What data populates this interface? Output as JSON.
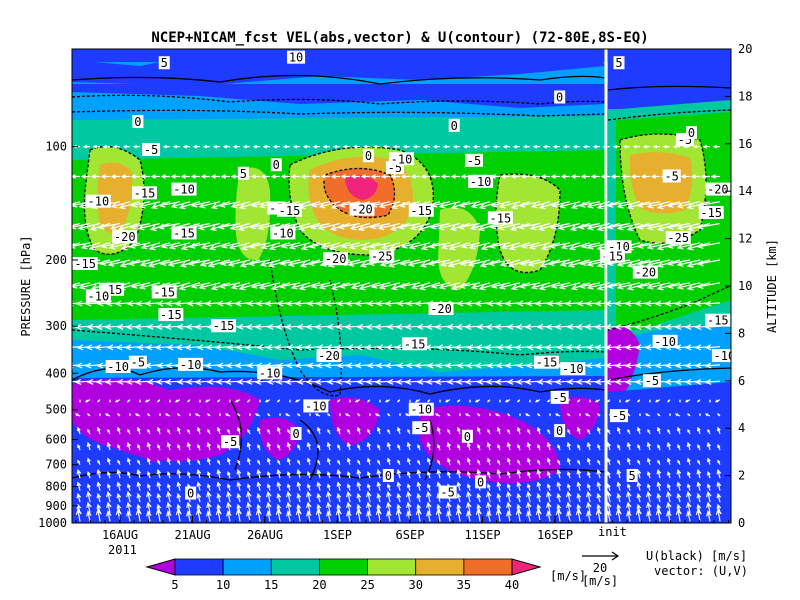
{
  "chart_data": {
    "type": "heatmap",
    "title": "NCEP+NICAM_fcst VEL(abs,vector) & U(contour)  (72-80E,8S-EQ)",
    "ylabel_left": "PRESSURE [hPa]",
    "ylabel_right": "ALTITUDE [km]",
    "x_ticks": [
      "16AUG",
      "21AUG",
      "26AUG",
      "1SEP",
      "6SEP",
      "11SEP",
      "16SEP"
    ],
    "x_year": "2011",
    "init_marker": "init",
    "y_pressure_ticks": [
      "100",
      "200",
      "300",
      "400",
      "500",
      "600",
      "700",
      "800",
      "900",
      "1000"
    ],
    "y_pressure_ticks_values": [
      100,
      200,
      300,
      400,
      500,
      600,
      700,
      800,
      900,
      1000
    ],
    "y_altitude_ticks": [
      "20",
      "18",
      "16",
      "14",
      "12",
      "10",
      "8",
      "6",
      "4",
      "2",
      "0"
    ],
    "y_altitude_ticks_values": [
      20,
      18,
      16,
      14,
      12,
      10,
      8,
      6,
      4,
      2,
      0
    ],
    "colorbar": {
      "levels": [
        "5",
        "10",
        "15",
        "20",
        "25",
        "30",
        "35",
        "40"
      ],
      "colors": [
        "#b000e0",
        "#1e3cff",
        "#00a0ff",
        "#00c8a0",
        "#00d000",
        "#a0e632",
        "#e6af2d",
        "#f06e2a",
        "#f0247a"
      ],
      "unit": "[m/s]"
    },
    "vector_ref": {
      "value": "20",
      "unit": "[m/s]"
    },
    "legend_note": [
      "U(black) [m/s]",
      "vector: (U,V)"
    ],
    "contour_labels": [
      {
        "v": "5",
        "t": 0.14,
        "p": 60
      },
      {
        "v": "10",
        "t": 0.34,
        "p": 58
      },
      {
        "v": "5",
        "t": 0.83,
        "p": 60
      },
      {
        "v": "0",
        "t": 0.1,
        "p": 86
      },
      {
        "v": "-5",
        "t": 0.12,
        "p": 102
      },
      {
        "v": "5",
        "t": 0.26,
        "p": 118
      },
      {
        "v": "0",
        "t": 0.31,
        "p": 112
      },
      {
        "v": "0",
        "t": 0.45,
        "p": 106
      },
      {
        "v": "-5",
        "t": 0.49,
        "p": 114
      },
      {
        "v": "-10",
        "t": 0.5,
        "p": 108
      },
      {
        "v": "0",
        "t": 0.58,
        "p": 88
      },
      {
        "v": "-5",
        "t": 0.61,
        "p": 109
      },
      {
        "v": "-10",
        "t": 0.62,
        "p": 124
      },
      {
        "v": "0",
        "t": 0.74,
        "p": 74
      },
      {
        "v": "-5",
        "t": 0.93,
        "p": 96
      },
      {
        "v": "-10",
        "t": 0.04,
        "p": 140
      },
      {
        "v": "-15",
        "t": 0.11,
        "p": 133
      },
      {
        "v": "-10",
        "t": 0.17,
        "p": 130
      },
      {
        "v": "-5",
        "t": 0.31,
        "p": 146
      },
      {
        "v": "-15",
        "t": 0.33,
        "p": 148
      },
      {
        "v": "-20",
        "t": 0.44,
        "p": 147
      },
      {
        "v": "-15",
        "t": 0.53,
        "p": 148
      },
      {
        "v": "-20",
        "t": 0.08,
        "p": 174
      },
      {
        "v": "-15",
        "t": 0.17,
        "p": 170
      },
      {
        "v": "-10",
        "t": 0.32,
        "p": 170
      },
      {
        "v": "-20",
        "t": 0.4,
        "p": 199
      },
      {
        "v": "-25",
        "t": 0.47,
        "p": 196
      },
      {
        "v": "-15",
        "t": 0.65,
        "p": 155
      },
      {
        "v": "-15",
        "t": 0.02,
        "p": 205
      },
      {
        "v": "-15",
        "t": 0.06,
        "p": 240
      },
      {
        "v": "-10",
        "t": 0.04,
        "p": 250
      },
      {
        "v": "-15",
        "t": 0.14,
        "p": 244
      },
      {
        "v": "-15",
        "t": 0.15,
        "p": 280
      },
      {
        "v": "-15",
        "t": 0.23,
        "p": 300
      },
      {
        "v": "-15",
        "t": 0.52,
        "p": 335
      },
      {
        "v": "-20",
        "t": 0.56,
        "p": 270
      },
      {
        "v": "-20",
        "t": 0.39,
        "p": 360
      },
      {
        "v": "-10",
        "t": 0.18,
        "p": 380
      },
      {
        "v": "-5",
        "t": 0.1,
        "p": 375
      },
      {
        "v": "-10",
        "t": 0.07,
        "p": 385
      },
      {
        "v": "-10",
        "t": 0.3,
        "p": 400
      },
      {
        "v": "-15",
        "t": 0.72,
        "p": 375
      },
      {
        "v": "-10",
        "t": 0.76,
        "p": 390
      },
      {
        "v": "-5",
        "t": 0.74,
        "p": 465
      },
      {
        "v": "-10",
        "t": 0.37,
        "p": 490
      },
      {
        "v": "-10",
        "t": 0.53,
        "p": 500
      },
      {
        "v": "-5",
        "t": 0.53,
        "p": 560
      },
      {
        "v": "0",
        "t": 0.34,
        "p": 580
      },
      {
        "v": "-5",
        "t": 0.24,
        "p": 610
      },
      {
        "v": "0",
        "t": 0.6,
        "p": 590
      },
      {
        "v": "0",
        "t": 0.74,
        "p": 570
      },
      {
        "v": "0",
        "t": 0.48,
        "p": 750
      },
      {
        "v": "0",
        "t": 0.62,
        "p": 780
      },
      {
        "v": "-5",
        "t": 0.57,
        "p": 830
      },
      {
        "v": "0",
        "t": 0.18,
        "p": 835
      },
      {
        "v": "-10",
        "t": 0.83,
        "p": 185
      },
      {
        "v": "-15",
        "t": 0.82,
        "p": 196
      },
      {
        "v": "-20",
        "t": 0.87,
        "p": 216
      },
      {
        "v": "-25",
        "t": 0.92,
        "p": 175
      },
      {
        "v": "-20",
        "t": 0.98,
        "p": 130
      },
      {
        "v": "-15",
        "t": 0.97,
        "p": 150
      },
      {
        "v": "-10",
        "t": 0.99,
        "p": 360
      },
      {
        "v": "-15",
        "t": 0.98,
        "p": 290
      },
      {
        "v": "-10",
        "t": 0.9,
        "p": 330
      },
      {
        "v": "-5",
        "t": 0.88,
        "p": 420
      },
      {
        "v": "0",
        "t": 0.94,
        "p": 92
      },
      {
        "v": "-5",
        "t": 0.91,
        "p": 120
      },
      {
        "v": "-5",
        "t": 0.83,
        "p": 520
      },
      {
        "v": "5",
        "t": 0.85,
        "p": 750
      }
    ]
  }
}
